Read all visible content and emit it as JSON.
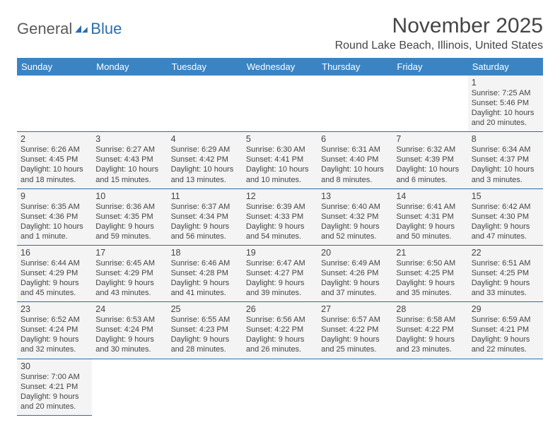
{
  "logo": {
    "part1": "General",
    "part2": "Blue"
  },
  "title": "November 2025",
  "location": "Round Lake Beach, Illinois, United States",
  "colors": {
    "header_bg": "#3b84c4",
    "header_text": "#ffffff",
    "border": "#2a6ead",
    "cell_bg": "#f4f4f4",
    "text": "#444444",
    "logo_gray": "#5a5a5a",
    "logo_blue": "#2a6ead"
  },
  "weekdays": [
    "Sunday",
    "Monday",
    "Tuesday",
    "Wednesday",
    "Thursday",
    "Friday",
    "Saturday"
  ],
  "days": {
    "1": {
      "sunrise": "7:25 AM",
      "sunset": "5:46 PM",
      "daylight": "10 hours and 20 minutes."
    },
    "2": {
      "sunrise": "6:26 AM",
      "sunset": "4:45 PM",
      "daylight": "10 hours and 18 minutes."
    },
    "3": {
      "sunrise": "6:27 AM",
      "sunset": "4:43 PM",
      "daylight": "10 hours and 15 minutes."
    },
    "4": {
      "sunrise": "6:29 AM",
      "sunset": "4:42 PM",
      "daylight": "10 hours and 13 minutes."
    },
    "5": {
      "sunrise": "6:30 AM",
      "sunset": "4:41 PM",
      "daylight": "10 hours and 10 minutes."
    },
    "6": {
      "sunrise": "6:31 AM",
      "sunset": "4:40 PM",
      "daylight": "10 hours and 8 minutes."
    },
    "7": {
      "sunrise": "6:32 AM",
      "sunset": "4:39 PM",
      "daylight": "10 hours and 6 minutes."
    },
    "8": {
      "sunrise": "6:34 AM",
      "sunset": "4:37 PM",
      "daylight": "10 hours and 3 minutes."
    },
    "9": {
      "sunrise": "6:35 AM",
      "sunset": "4:36 PM",
      "daylight": "10 hours and 1 minute."
    },
    "10": {
      "sunrise": "6:36 AM",
      "sunset": "4:35 PM",
      "daylight": "9 hours and 59 minutes."
    },
    "11": {
      "sunrise": "6:37 AM",
      "sunset": "4:34 PM",
      "daylight": "9 hours and 56 minutes."
    },
    "12": {
      "sunrise": "6:39 AM",
      "sunset": "4:33 PM",
      "daylight": "9 hours and 54 minutes."
    },
    "13": {
      "sunrise": "6:40 AM",
      "sunset": "4:32 PM",
      "daylight": "9 hours and 52 minutes."
    },
    "14": {
      "sunrise": "6:41 AM",
      "sunset": "4:31 PM",
      "daylight": "9 hours and 50 minutes."
    },
    "15": {
      "sunrise": "6:42 AM",
      "sunset": "4:30 PM",
      "daylight": "9 hours and 47 minutes."
    },
    "16": {
      "sunrise": "6:44 AM",
      "sunset": "4:29 PM",
      "daylight": "9 hours and 45 minutes."
    },
    "17": {
      "sunrise": "6:45 AM",
      "sunset": "4:29 PM",
      "daylight": "9 hours and 43 minutes."
    },
    "18": {
      "sunrise": "6:46 AM",
      "sunset": "4:28 PM",
      "daylight": "9 hours and 41 minutes."
    },
    "19": {
      "sunrise": "6:47 AM",
      "sunset": "4:27 PM",
      "daylight": "9 hours and 39 minutes."
    },
    "20": {
      "sunrise": "6:49 AM",
      "sunset": "4:26 PM",
      "daylight": "9 hours and 37 minutes."
    },
    "21": {
      "sunrise": "6:50 AM",
      "sunset": "4:25 PM",
      "daylight": "9 hours and 35 minutes."
    },
    "22": {
      "sunrise": "6:51 AM",
      "sunset": "4:25 PM",
      "daylight": "9 hours and 33 minutes."
    },
    "23": {
      "sunrise": "6:52 AM",
      "sunset": "4:24 PM",
      "daylight": "9 hours and 32 minutes."
    },
    "24": {
      "sunrise": "6:53 AM",
      "sunset": "4:24 PM",
      "daylight": "9 hours and 30 minutes."
    },
    "25": {
      "sunrise": "6:55 AM",
      "sunset": "4:23 PM",
      "daylight": "9 hours and 28 minutes."
    },
    "26": {
      "sunrise": "6:56 AM",
      "sunset": "4:22 PM",
      "daylight": "9 hours and 26 minutes."
    },
    "27": {
      "sunrise": "6:57 AM",
      "sunset": "4:22 PM",
      "daylight": "9 hours and 25 minutes."
    },
    "28": {
      "sunrise": "6:58 AM",
      "sunset": "4:22 PM",
      "daylight": "9 hours and 23 minutes."
    },
    "29": {
      "sunrise": "6:59 AM",
      "sunset": "4:21 PM",
      "daylight": "9 hours and 22 minutes."
    },
    "30": {
      "sunrise": "7:00 AM",
      "sunset": "4:21 PM",
      "daylight": "9 hours and 20 minutes."
    }
  },
  "labels": {
    "sunrise": "Sunrise: ",
    "sunset": "Sunset: ",
    "daylight": "Daylight: "
  },
  "layout": [
    [
      null,
      null,
      null,
      null,
      null,
      null,
      "1"
    ],
    [
      "2",
      "3",
      "4",
      "5",
      "6",
      "7",
      "8"
    ],
    [
      "9",
      "10",
      "11",
      "12",
      "13",
      "14",
      "15"
    ],
    [
      "16",
      "17",
      "18",
      "19",
      "20",
      "21",
      "22"
    ],
    [
      "23",
      "24",
      "25",
      "26",
      "27",
      "28",
      "29"
    ],
    [
      "30",
      null,
      null,
      null,
      null,
      null,
      null
    ]
  ]
}
